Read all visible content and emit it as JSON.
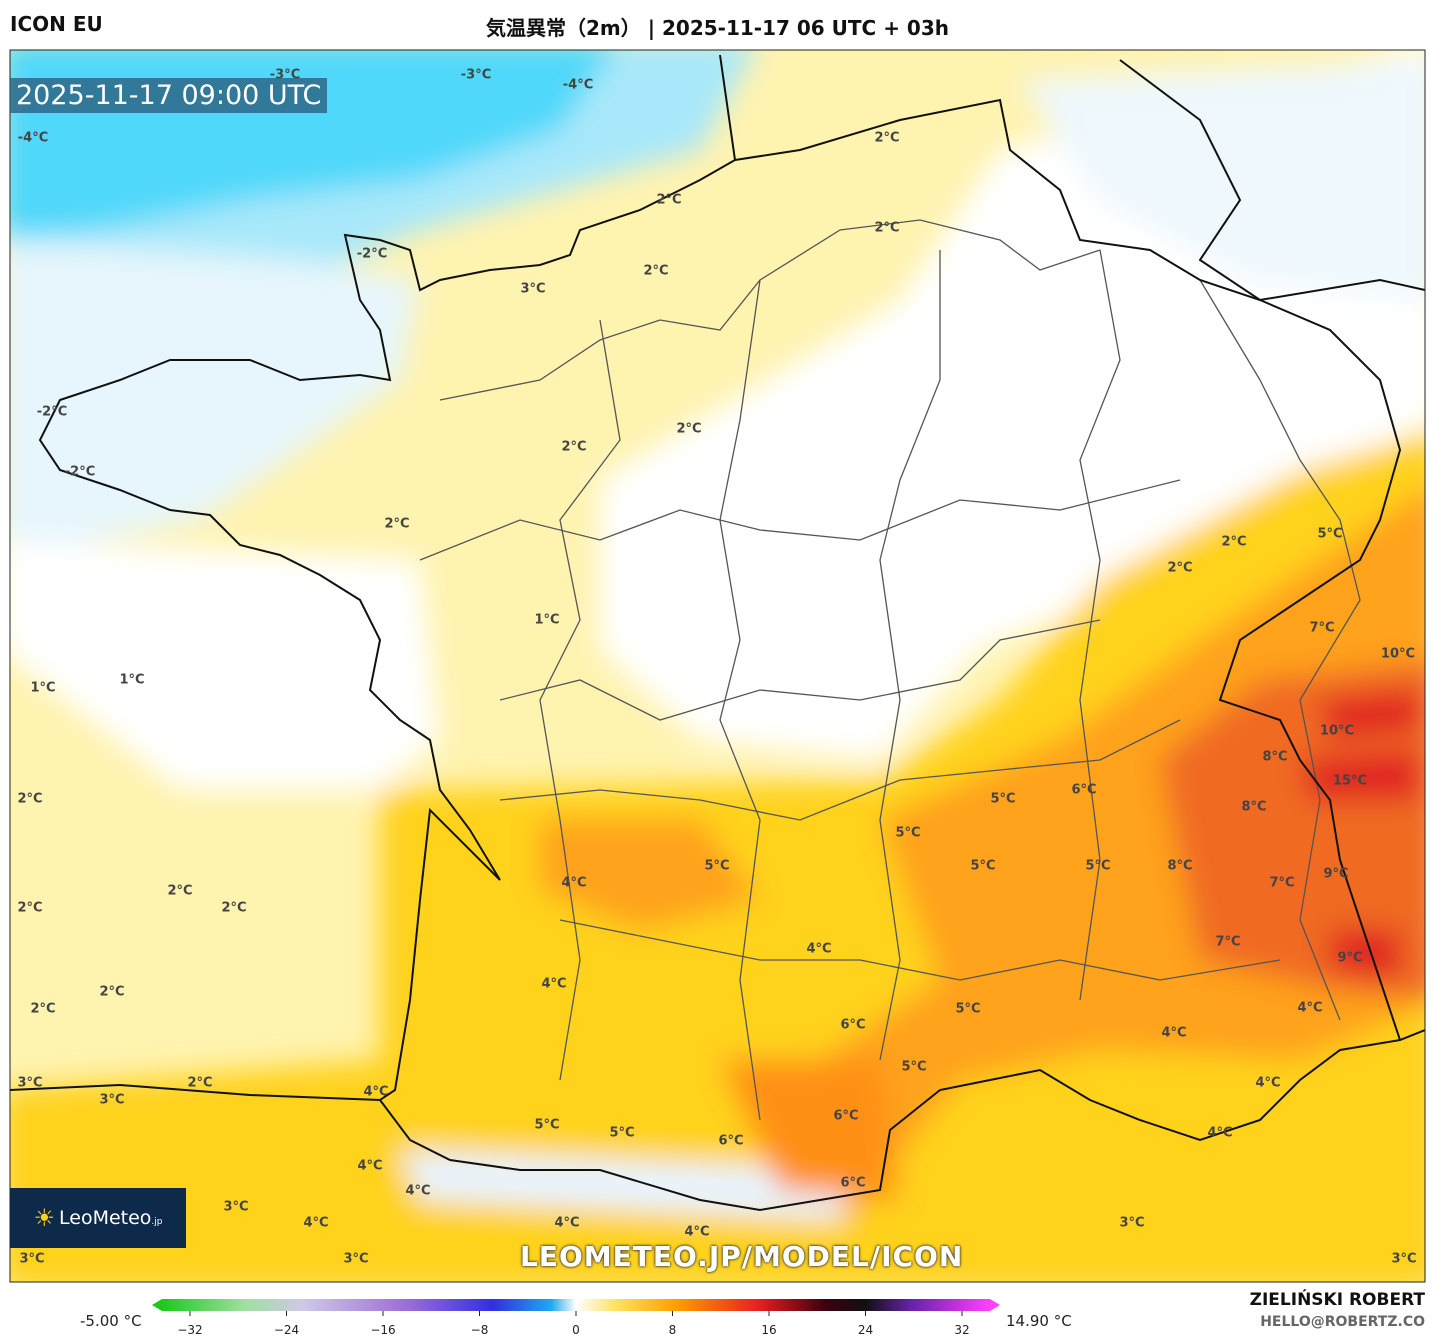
{
  "header": {
    "model": "ICON EU",
    "title": "気温異常（2m） | 2025-11-17 06 UTC + 03h"
  },
  "map": {
    "timestamp": "2025-11-17 09:00 UTC",
    "watermark": "LEOMETEO.JP/MODEL/ICON",
    "logo": "LeoMeteo",
    "logo_suffix": ".jp",
    "labels": [
      "-4°C",
      "-3°C",
      "-3°C",
      "-4°C",
      "2°C",
      "2°C",
      "2°C",
      "-2°C",
      "2°C",
      "3°C",
      "-2°C",
      "2°C",
      "2°C",
      "-2°C",
      "2°C",
      "5°C",
      "2°C",
      "2°C",
      "1°C",
      "7°C",
      "10°C",
      "1°C",
      "1°C",
      "10°C",
      "8°C",
      "15°C",
      "6°C",
      "5°C",
      "2°C",
      "8°C",
      "5°C",
      "5°C",
      "5°C",
      "5°C",
      "8°C",
      "9°C",
      "7°C",
      "4°C",
      "2°C",
      "2°C",
      "2°C",
      "7°C",
      "4°C",
      "9°C",
      "4°C",
      "2°C",
      "2°C",
      "5°C",
      "4°C",
      "6°C",
      "4°C",
      "5°C",
      "3°C",
      "2°C",
      "4°C",
      "4°C",
      "3°C",
      "6°C",
      "5°C",
      "5°C",
      "4°C",
      "6°C",
      "4°C",
      "4°C",
      "6°C",
      "3°C",
      "4°C",
      "4°C",
      "4°C",
      "3°C",
      "3°C",
      "3°C",
      "3°C"
    ]
  },
  "colorbar": {
    "min_label": "-5.00 °C",
    "max_label": "14.90 °C",
    "ticks": [
      "−32",
      "−24",
      "−16",
      "−8",
      "0",
      "8",
      "16",
      "24",
      "32"
    ]
  },
  "footer": {
    "author": "ZIELIŃSKI ROBERT",
    "email": "HELLO@ROBERTZ.CO"
  }
}
